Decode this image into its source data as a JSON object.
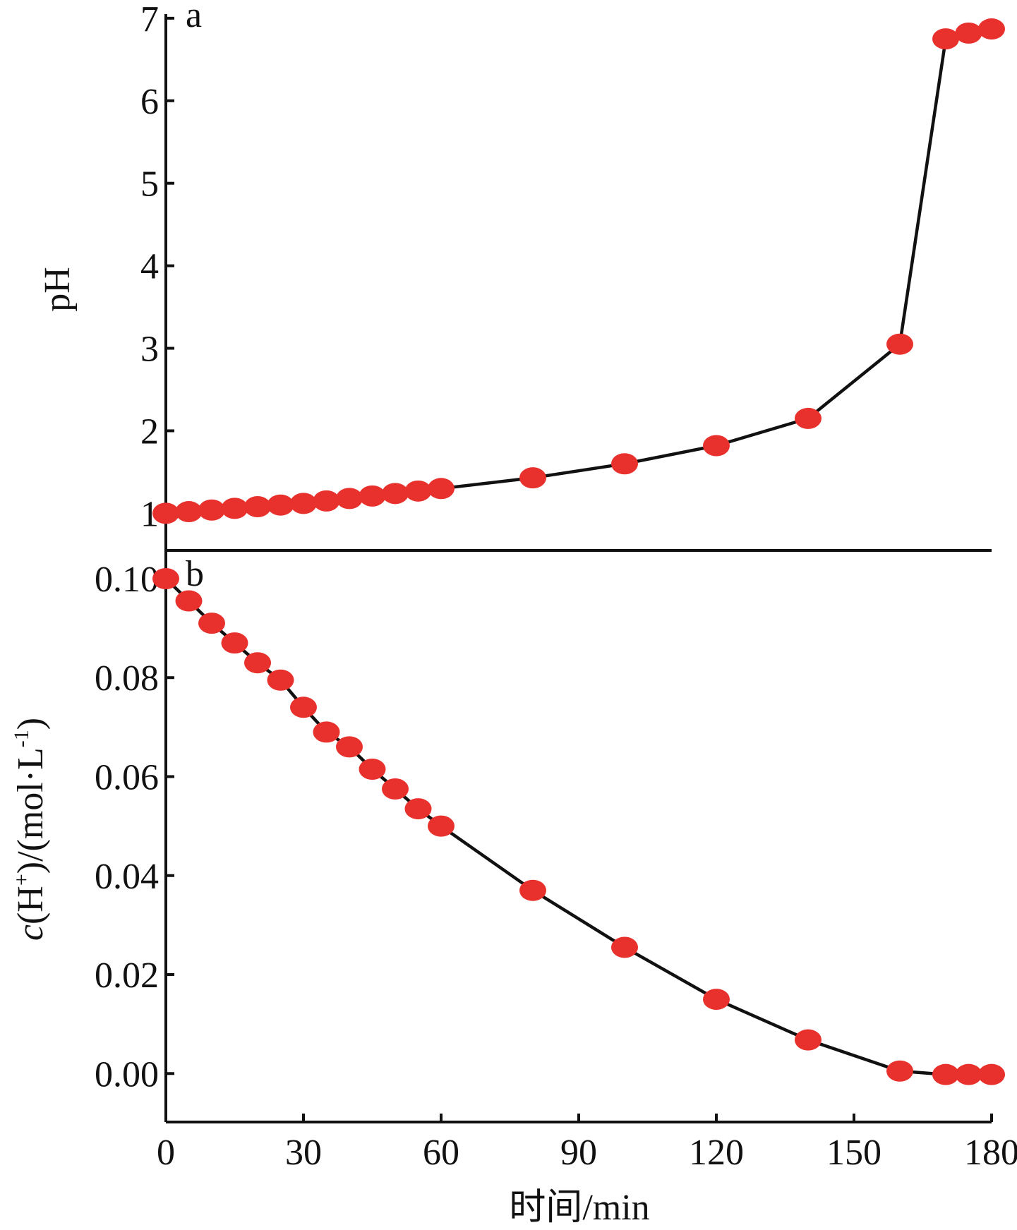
{
  "chart_data": [
    {
      "type": "line",
      "panel_label": "a",
      "ylabel": "pH",
      "yticks": [
        "1",
        "2",
        "3",
        "4",
        "5",
        "6",
        "7"
      ],
      "ylim": [
        0.55,
        7.05
      ],
      "xlim": [
        0,
        180
      ],
      "marker_color": "#e8312d",
      "line_color": "#111111",
      "x": [
        0,
        5,
        10,
        15,
        20,
        25,
        30,
        35,
        40,
        45,
        50,
        55,
        60,
        80,
        100,
        120,
        140,
        160,
        170,
        175,
        180
      ],
      "y": [
        1.0,
        1.02,
        1.04,
        1.06,
        1.08,
        1.1,
        1.12,
        1.15,
        1.18,
        1.21,
        1.24,
        1.27,
        1.3,
        1.43,
        1.6,
        1.82,
        2.15,
        3.05,
        6.75,
        6.82,
        6.87
      ]
    },
    {
      "type": "line",
      "panel_label": "b",
      "ylabel_main": "c",
      "ylabel_rest": "(H",
      "ylabel_sup": "+",
      "ylabel_mid": ")/(mol·L",
      "ylabel_sup2": "-1",
      "ylabel_end": ")",
      "xlabel": "时间/min",
      "xticks": [
        "0",
        "30",
        "60",
        "90",
        "120",
        "150",
        "180"
      ],
      "yticks": [
        "0.00",
        "0.02",
        "0.04",
        "0.06",
        "0.08",
        "0.10"
      ],
      "ylim": [
        -0.0098,
        0.1057
      ],
      "xlim": [
        0,
        180
      ],
      "marker_color": "#e8312d",
      "line_color": "#111111",
      "x": [
        0,
        5,
        10,
        15,
        20,
        25,
        30,
        35,
        40,
        45,
        50,
        55,
        60,
        80,
        100,
        120,
        140,
        160,
        170,
        175,
        180
      ],
      "y": [
        0.1,
        0.0955,
        0.091,
        0.087,
        0.083,
        0.0795,
        0.074,
        0.069,
        0.066,
        0.0615,
        0.0575,
        0.0535,
        0.05,
        0.037,
        0.0255,
        0.015,
        0.0068,
        0.0005,
        -0.0002,
        -0.0002,
        -0.0002
      ]
    }
  ]
}
